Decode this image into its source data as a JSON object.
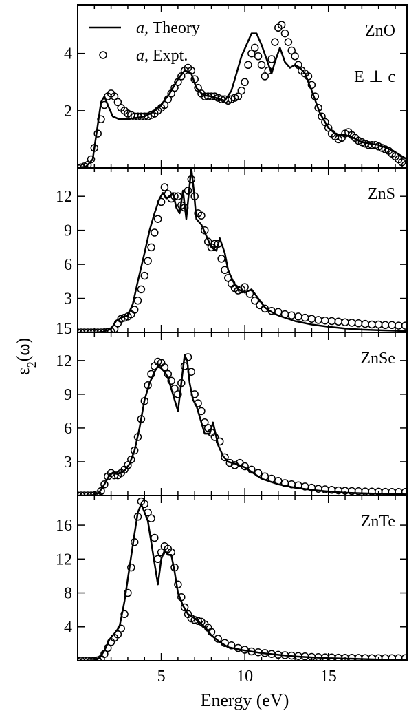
{
  "chart_data": {
    "type": "line",
    "xlabel": "Energy (eV)",
    "ylabel_main": "ε",
    "ylabel_sub": "2",
    "ylabel_tail": "(ω)",
    "xlim": [
      0,
      19.7
    ],
    "x_ticks": [
      5,
      10,
      15
    ],
    "legend": {
      "placement": "top-left",
      "entries": [
        {
          "prefix": "a,",
          "text": " Theory",
          "marker": "line"
        },
        {
          "prefix": "a,",
          "text": " Expt.",
          "marker": "open-circle"
        }
      ]
    },
    "panels": [
      {
        "material": "ZnO",
        "polarization": "E ⊥ c",
        "ylim": [
          0,
          5.7
        ],
        "y_ticks": [
          2,
          4
        ],
        "extra_labels": [],
        "theory": {
          "x": [
            0,
            0.5,
            0.9,
            1.2,
            1.4,
            1.6,
            1.8,
            2.1,
            2.5,
            3,
            3.5,
            4,
            4.5,
            5,
            5.5,
            6,
            6.4,
            6.8,
            7.1,
            7.5,
            8,
            8.5,
            8.8,
            9.2,
            9.5,
            9.8,
            10.1,
            10.4,
            10.7,
            11,
            11.3,
            11.6,
            11.8,
            12.1,
            12.4,
            12.7,
            13,
            13.3,
            13.6,
            14,
            14.5,
            15,
            15.5,
            16,
            16.5,
            17,
            17.5,
            18,
            18.5,
            19,
            19.7
          ],
          "y": [
            0,
            0.05,
            0.3,
            1.5,
            2.3,
            2.5,
            2.2,
            1.8,
            1.7,
            1.7,
            1.75,
            1.8,
            1.95,
            2.2,
            2.6,
            3.1,
            3.4,
            3.3,
            2.8,
            2.55,
            2.5,
            2.4,
            2.35,
            2.7,
            3.3,
            3.9,
            4.3,
            4.7,
            4.7,
            4.3,
            3.8,
            3.3,
            3.7,
            4.2,
            3.7,
            3.5,
            3.6,
            3.5,
            3.3,
            2.7,
            1.9,
            1.4,
            1.15,
            1.15,
            1.05,
            0.9,
            0.85,
            0.8,
            0.7,
            0.55,
            0.3
          ]
        },
        "experiment": {
          "x": [
            0,
            0.2,
            0.4,
            0.6,
            0.8,
            1.0,
            1.2,
            1.4,
            1.6,
            1.8,
            2.0,
            2.2,
            2.4,
            2.6,
            2.8,
            3.0,
            3.2,
            3.4,
            3.6,
            3.8,
            4.0,
            4.2,
            4.4,
            4.6,
            4.8,
            5.0,
            5.2,
            5.4,
            5.6,
            5.8,
            6.0,
            6.2,
            6.4,
            6.6,
            6.8,
            7.0,
            7.2,
            7.4,
            7.6,
            7.8,
            8.0,
            8.2,
            8.4,
            8.6,
            8.8,
            9.0,
            9.2,
            9.4,
            9.6,
            9.8,
            10.0,
            10.2,
            10.4,
            10.6,
            10.8,
            11.0,
            11.2,
            11.4,
            11.6,
            11.8,
            12.0,
            12.2,
            12.4,
            12.6,
            12.8,
            13.0,
            13.2,
            13.4,
            13.6,
            13.8,
            14.0,
            14.2,
            14.4,
            14.6,
            14.8,
            15.0,
            15.2,
            15.4,
            15.6,
            15.8,
            16.0,
            16.2,
            16.4,
            16.6,
            16.8,
            17.0,
            17.2,
            17.4,
            17.6,
            17.8,
            18.0,
            18.2,
            18.4,
            18.6,
            18.8,
            19.0,
            19.2,
            19.4,
            19.6
          ],
          "y": [
            0,
            0.02,
            0.05,
            0.1,
            0.3,
            0.7,
            1.2,
            1.7,
            2.2,
            2.5,
            2.6,
            2.5,
            2.3,
            2.1,
            2.0,
            1.9,
            1.85,
            1.8,
            1.8,
            1.8,
            1.8,
            1.8,
            1.85,
            1.9,
            2.0,
            2.1,
            2.2,
            2.4,
            2.6,
            2.8,
            3.0,
            3.2,
            3.4,
            3.5,
            3.4,
            3.1,
            2.8,
            2.6,
            2.5,
            2.5,
            2.5,
            2.5,
            2.45,
            2.4,
            2.4,
            2.35,
            2.4,
            2.45,
            2.5,
            2.7,
            3.0,
            3.6,
            4.0,
            4.2,
            3.9,
            3.6,
            3.2,
            3.4,
            3.8,
            4.4,
            4.9,
            5.0,
            4.7,
            4.4,
            4.1,
            3.9,
            3.6,
            3.4,
            3.3,
            3.2,
            2.9,
            2.5,
            2.1,
            1.8,
            1.6,
            1.4,
            1.2,
            1.1,
            1.0,
            1.05,
            1.2,
            1.25,
            1.15,
            1.05,
            0.95,
            0.9,
            0.85,
            0.8,
            0.8,
            0.8,
            0.75,
            0.7,
            0.65,
            0.6,
            0.5,
            0.4,
            0.3,
            0.2,
            0.1
          ]
        }
      },
      {
        "material": "ZnS",
        "polarization": "",
        "ylim": [
          0,
          14.5
        ],
        "y_ticks": [
          3,
          6,
          9,
          12
        ],
        "extra_labels": [
          "15"
        ],
        "theory": {
          "x": [
            0,
            1,
            1.5,
            2,
            2.3,
            2.6,
            3,
            3.3,
            3.6,
            4,
            4.3,
            4.6,
            4.9,
            5.1,
            5.3,
            5.5,
            5.7,
            5.9,
            6.1,
            6.3,
            6.5,
            6.7,
            6.8,
            6.95,
            7.1,
            7.4,
            7.7,
            8,
            8.3,
            8.5,
            8.8,
            9,
            9.3,
            9.6,
            10,
            10.4,
            10.8,
            11.2,
            11.6,
            12,
            13,
            14,
            15,
            16,
            17,
            18,
            19,
            19.7
          ],
          "y": [
            0,
            0,
            0.05,
            0.3,
            1.0,
            1.3,
            1.5,
            2.5,
            4.5,
            7.0,
            9.0,
            10.5,
            11.8,
            12.3,
            11.8,
            12.0,
            12.3,
            11.0,
            10.5,
            12.5,
            10.0,
            13.0,
            14.5,
            12.5,
            10.0,
            9.5,
            8.5,
            7.5,
            7.2,
            8.3,
            7.0,
            5.5,
            4.5,
            3.8,
            3.5,
            3.8,
            3.0,
            2.2,
            1.8,
            1.5,
            1.0,
            0.7,
            0.5,
            0.35,
            0.25,
            0.2,
            0.15,
            0.1
          ]
        },
        "experiment": {
          "x": [
            0,
            0.2,
            0.4,
            0.6,
            0.8,
            1.0,
            1.2,
            1.4,
            1.6,
            1.8,
            2.0,
            2.2,
            2.4,
            2.6,
            2.8,
            3.0,
            3.2,
            3.4,
            3.6,
            3.8,
            4.0,
            4.2,
            4.4,
            4.6,
            4.8,
            5.0,
            5.2,
            5.4,
            5.6,
            5.8,
            6.0,
            6.2,
            6.4,
            6.6,
            6.8,
            7.0,
            7.2,
            7.4,
            7.6,
            7.8,
            8.0,
            8.2,
            8.4,
            8.6,
            8.8,
            9.0,
            9.2,
            9.4,
            9.6,
            9.8,
            10.0,
            10.3,
            10.6,
            10.9,
            11.2,
            11.6,
            12.0,
            12.4,
            12.8,
            13.2,
            13.6,
            14.0,
            14.4,
            14.8,
            15.2,
            15.6,
            16.0,
            16.4,
            16.8,
            17.2,
            17.6,
            18.0,
            18.4,
            18.8,
            19.2,
            19.6
          ],
          "y": [
            0,
            0,
            0,
            0,
            0,
            0,
            0,
            0,
            0.02,
            0.05,
            0.1,
            0.3,
            0.8,
            1.2,
            1.3,
            1.4,
            1.6,
            2.0,
            2.8,
            3.8,
            5.0,
            6.3,
            7.5,
            8.8,
            10.0,
            11.5,
            12.8,
            12.2,
            11.8,
            12.0,
            12.0,
            11.2,
            11.0,
            12.5,
            13.5,
            12.0,
            10.5,
            10.3,
            9.0,
            8.0,
            7.5,
            7.8,
            7.8,
            6.5,
            5.5,
            4.8,
            4.3,
            3.9,
            3.7,
            3.8,
            4.0,
            3.4,
            2.8,
            2.4,
            2.1,
            1.9,
            1.8,
            1.6,
            1.5,
            1.4,
            1.3,
            1.2,
            1.1,
            1.05,
            1.0,
            0.95,
            0.9,
            0.85,
            0.8,
            0.75,
            0.7,
            0.7,
            0.65,
            0.65,
            0.6,
            0.6
          ]
        }
      },
      {
        "material": "ZnSe",
        "polarization": "",
        "ylim": [
          0,
          14.5
        ],
        "y_ticks": [
          3,
          6,
          9,
          12
        ],
        "extra_labels": [],
        "theory": {
          "x": [
            0,
            0.5,
            1,
            1.3,
            1.6,
            1.9,
            2.1,
            2.4,
            2.8,
            3.1,
            3.4,
            3.7,
            4,
            4.3,
            4.6,
            4.8,
            5,
            5.2,
            5.4,
            5.6,
            5.8,
            6,
            6.2,
            6.4,
            6.55,
            6.7,
            6.9,
            7.1,
            7.3,
            7.6,
            7.9,
            8.1,
            8.4,
            8.7,
            9,
            9.5,
            10,
            10.5,
            11,
            12,
            13,
            14,
            15,
            16,
            17,
            18,
            19,
            19.7
          ],
          "y": [
            0,
            0,
            0.05,
            0.3,
            1.0,
            1.8,
            2.0,
            1.9,
            2.2,
            2.8,
            4.0,
            6.0,
            8.5,
            10.0,
            11.0,
            11.5,
            11.3,
            11.0,
            10.5,
            9.5,
            8.5,
            7.5,
            10.0,
            12.5,
            12.0,
            10.0,
            8.5,
            8.0,
            7.0,
            5.5,
            5.5,
            6.5,
            4.5,
            3.5,
            3.0,
            2.8,
            2.5,
            2.0,
            1.5,
            1.0,
            0.7,
            0.5,
            0.35,
            0.25,
            0.2,
            0.15,
            0.12,
            0.1
          ]
        },
        "experiment": {
          "x": [
            0,
            0.2,
            0.4,
            0.6,
            0.8,
            1.0,
            1.2,
            1.4,
            1.6,
            1.8,
            2.0,
            2.2,
            2.4,
            2.6,
            2.8,
            3.0,
            3.2,
            3.4,
            3.6,
            3.8,
            4.0,
            4.2,
            4.4,
            4.6,
            4.8,
            5.0,
            5.2,
            5.4,
            5.6,
            5.8,
            6.0,
            6.2,
            6.4,
            6.6,
            6.8,
            7.0,
            7.2,
            7.4,
            7.6,
            7.8,
            8.0,
            8.2,
            8.5,
            8.8,
            9.1,
            9.4,
            9.7,
            10.0,
            10.4,
            10.8,
            11.2,
            11.6,
            12.0,
            12.4,
            12.8,
            13.2,
            13.6,
            14.0,
            14.4,
            14.8,
            15.2,
            15.6,
            16.0,
            16.4,
            16.8,
            17.2,
            17.6,
            18.0,
            18.4,
            18.8,
            19.2,
            19.6
          ],
          "y": [
            0,
            0,
            0,
            0,
            0,
            0.02,
            0.1,
            0.4,
            1.0,
            1.7,
            2.0,
            1.8,
            1.8,
            2.0,
            2.3,
            2.7,
            3.2,
            4.0,
            5.2,
            6.8,
            8.4,
            9.8,
            10.8,
            11.5,
            11.9,
            11.8,
            11.4,
            10.8,
            10.2,
            9.5,
            9.0,
            10.0,
            11.5,
            12.3,
            11.0,
            9.0,
            8.2,
            7.5,
            6.5,
            6.0,
            5.6,
            5.2,
            4.8,
            3.4,
            2.9,
            2.7,
            2.9,
            2.6,
            2.3,
            2.0,
            1.7,
            1.5,
            1.3,
            1.1,
            1.0,
            0.9,
            0.8,
            0.7,
            0.6,
            0.55,
            0.5,
            0.45,
            0.42,
            0.4,
            0.38,
            0.36,
            0.35,
            0.34,
            0.33,
            0.32,
            0.32,
            0.32
          ]
        }
      },
      {
        "material": "ZnTe",
        "polarization": "",
        "ylim": [
          0,
          19.5
        ],
        "y_ticks": [
          4,
          8,
          12,
          16
        ],
        "extra_labels": [],
        "theory": {
          "x": [
            0,
            0.5,
            1,
            1.3,
            1.6,
            1.9,
            2.2,
            2.5,
            2.8,
            3.1,
            3.4,
            3.6,
            3.8,
            4.0,
            4.2,
            4.4,
            4.6,
            4.8,
            5.0,
            5.2,
            5.4,
            5.6,
            5.8,
            6.0,
            6.3,
            6.6,
            7.0,
            7.3,
            7.6,
            8,
            8.5,
            9,
            10,
            11,
            12,
            13,
            14,
            15,
            16,
            17,
            18,
            19,
            19.7
          ],
          "y": [
            0,
            0,
            0.05,
            0.3,
            1.2,
            2.5,
            3.2,
            4.0,
            7.0,
            11.0,
            15.0,
            17.5,
            18.5,
            17.5,
            16.5,
            14.0,
            11.5,
            9.0,
            12.0,
            13.0,
            12.5,
            12.5,
            10.5,
            8.0,
            6.5,
            5.5,
            5.0,
            4.5,
            4.0,
            3.0,
            2.2,
            1.6,
            1.2,
            0.9,
            0.7,
            0.5,
            0.4,
            0.3,
            0.25,
            0.2,
            0.15,
            0.12,
            0.1
          ]
        },
        "experiment": {
          "x": [
            0,
            0.2,
            0.4,
            0.6,
            0.8,
            1.0,
            1.2,
            1.4,
            1.6,
            1.8,
            2.0,
            2.2,
            2.4,
            2.6,
            2.8,
            3.0,
            3.2,
            3.4,
            3.6,
            3.8,
            4.0,
            4.2,
            4.4,
            4.6,
            4.8,
            5.0,
            5.2,
            5.4,
            5.6,
            5.8,
            6.0,
            6.2,
            6.4,
            6.6,
            6.8,
            7.0,
            7.2,
            7.4,
            7.6,
            7.8,
            8.0,
            8.4,
            8.8,
            9.2,
            9.6,
            10.0,
            10.4,
            10.8,
            11.2,
            11.6,
            12.0,
            12.4,
            12.8,
            13.2,
            13.6,
            14.0,
            14.4,
            14.8,
            15.2,
            15.6,
            16.0,
            16.4,
            16.8,
            17.2,
            17.6,
            18.0,
            18.4,
            18.8,
            19.2,
            19.6
          ],
          "y": [
            0,
            0,
            0,
            0,
            0,
            0,
            0.05,
            0.2,
            0.8,
            1.5,
            2.2,
            2.7,
            3.1,
            3.8,
            5.5,
            8.0,
            11.0,
            14.0,
            17.0,
            18.8,
            18.5,
            17.5,
            16.8,
            14.5,
            12.0,
            12.8,
            13.5,
            13.2,
            12.8,
            11.0,
            9.0,
            7.5,
            6.3,
            5.5,
            5.0,
            4.8,
            4.7,
            4.6,
            4.3,
            3.9,
            3.4,
            2.6,
            2.1,
            1.8,
            1.5,
            1.3,
            1.1,
            1.0,
            0.9,
            0.8,
            0.7,
            0.65,
            0.6,
            0.55,
            0.5,
            0.45,
            0.42,
            0.4,
            0.38,
            0.36,
            0.35,
            0.34,
            0.33,
            0.32,
            0.31,
            0.3,
            0.3,
            0.3,
            0.3,
            0.3
          ]
        }
      }
    ]
  }
}
